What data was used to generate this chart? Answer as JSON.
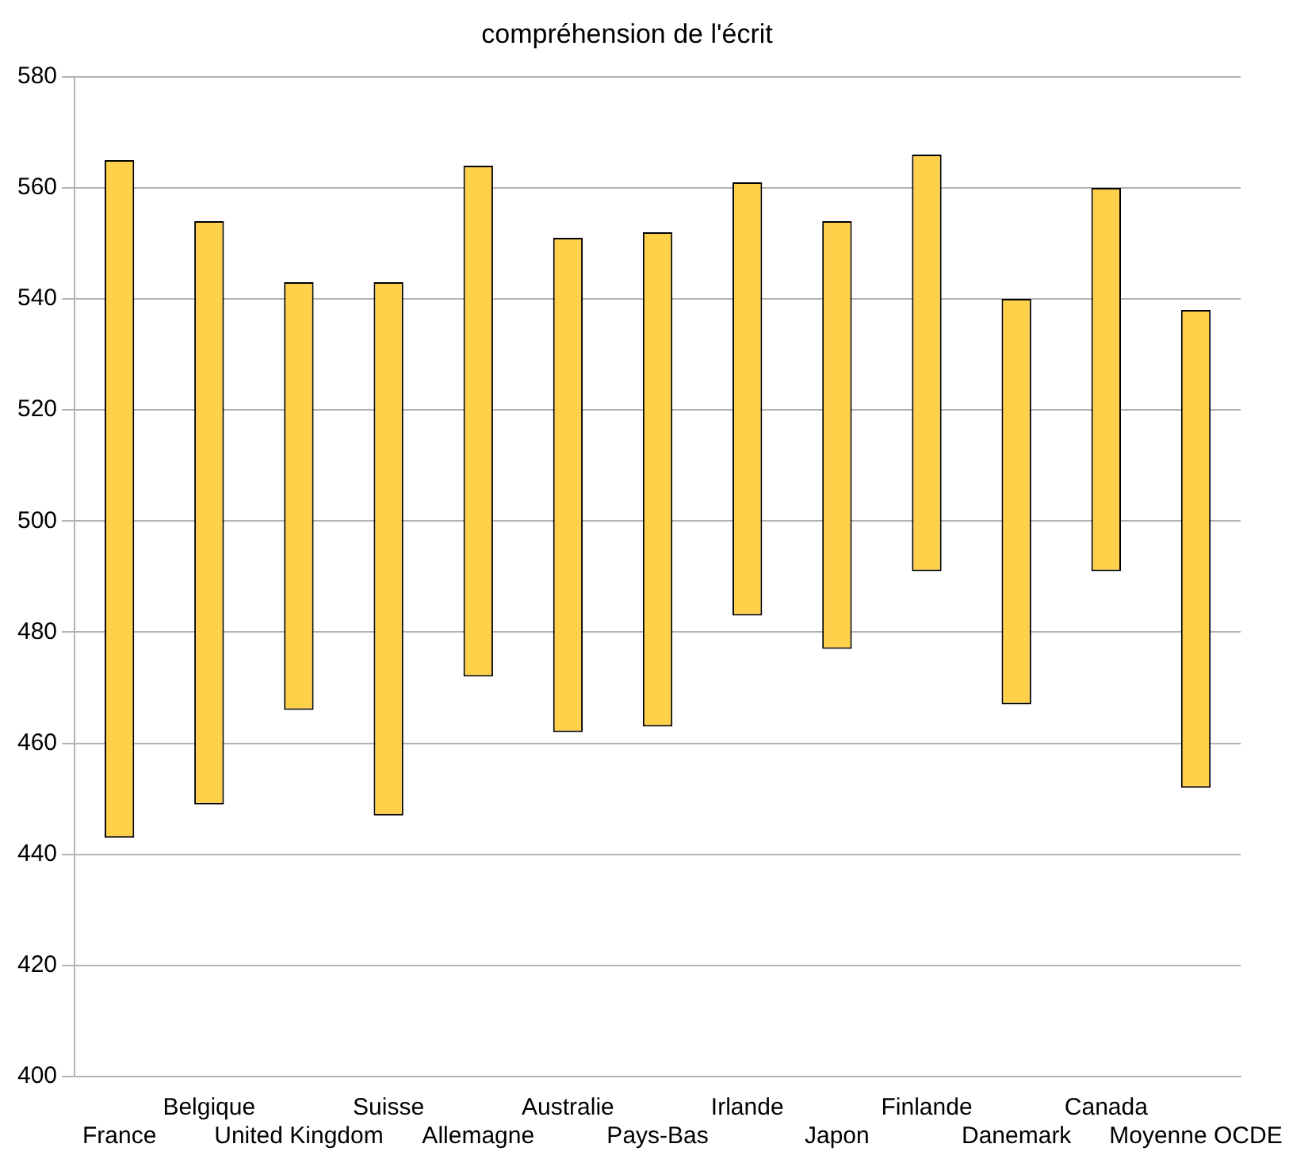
{
  "chart_data": {
    "type": "bar",
    "title": "compréhension de l'écrit",
    "categories": [
      "France",
      "Belgique",
      "United Kingdom",
      "Suisse",
      "Allemagne",
      "Australie",
      "Pays-Bas",
      "Irlande",
      "Japon",
      "Finlande",
      "Danemark",
      "Canada",
      "Moyenne OCDE"
    ],
    "base": [
      443,
      449,
      466,
      447,
      472,
      462,
      463,
      483,
      477,
      491,
      467,
      491,
      452
    ],
    "values": [
      122,
      105,
      77,
      96,
      92,
      89,
      89,
      78,
      77,
      75,
      73,
      69,
      86
    ],
    "color": "#ffd04a",
    "ylim": [
      400,
      580
    ],
    "yticks": [
      400,
      420,
      440,
      460,
      480,
      500,
      520,
      540,
      560,
      580
    ],
    "grid": "y",
    "legend": false
  }
}
